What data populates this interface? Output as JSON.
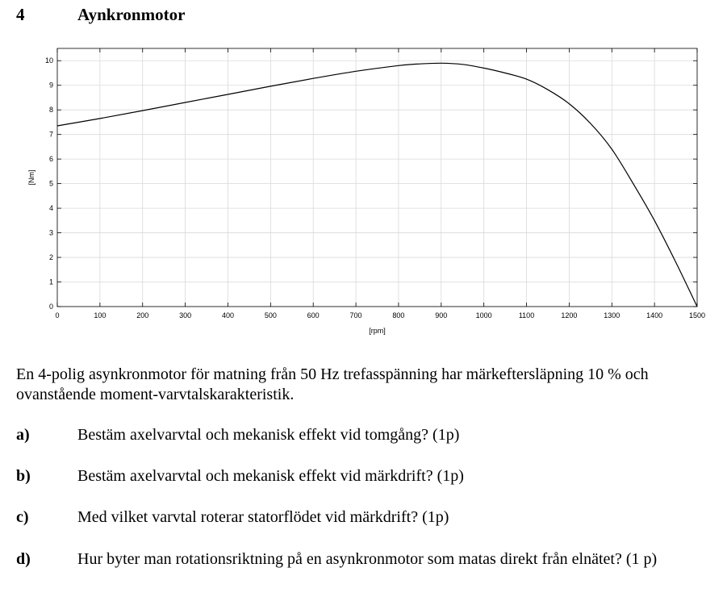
{
  "heading": {
    "number": "4",
    "title": "Aynkronmotor"
  },
  "chart_data": {
    "type": "line",
    "title": "",
    "xlabel": "[rpm]",
    "ylabel": "[Nm]",
    "xlim": [
      0,
      1500
    ],
    "ylim": [
      0,
      10.5
    ],
    "xticks": [
      0,
      100,
      200,
      300,
      400,
      500,
      600,
      700,
      800,
      900,
      1000,
      1100,
      1200,
      1300,
      1400,
      1500
    ],
    "yticks": [
      0,
      1,
      2,
      3,
      4,
      5,
      6,
      7,
      8,
      9,
      10
    ],
    "grid": true,
    "line_color": "#000000",
    "grid_color": "#d9d9d9",
    "series": [
      {
        "x": [
          0,
          100,
          200,
          300,
          400,
          500,
          600,
          700,
          800,
          850,
          900,
          950,
          1000,
          1050,
          1100,
          1150,
          1200,
          1250,
          1300,
          1350,
          1400,
          1450,
          1500
        ],
        "values": [
          7.35,
          7.65,
          7.97,
          8.3,
          8.63,
          8.96,
          9.28,
          9.57,
          9.8,
          9.87,
          9.9,
          9.85,
          9.7,
          9.5,
          9.25,
          8.82,
          8.25,
          7.45,
          6.4,
          5.0,
          3.5,
          1.8,
          0
        ]
      }
    ]
  },
  "intro": "En 4-polig asynkronmotor för matning från 50 Hz trefasspänning har märkeftersläpning 10 % och ovanstående moment-varvtalskarakteristik.",
  "questions": [
    {
      "label": "a)",
      "text": "Bestäm axelvarvtal och mekanisk effekt vid tomgång? (1p)"
    },
    {
      "label": "b)",
      "text": "Bestäm axelvarvtal och mekanisk effekt vid märkdrift? (1p)"
    },
    {
      "label": "c)",
      "text": "Med vilket varvtal roterar statorflödet vid märkdrift? (1p)"
    },
    {
      "label": "d)",
      "text": "Hur byter man rotationsriktning på en asynkronmotor som matas direkt från elnätet? (1 p)"
    }
  ]
}
